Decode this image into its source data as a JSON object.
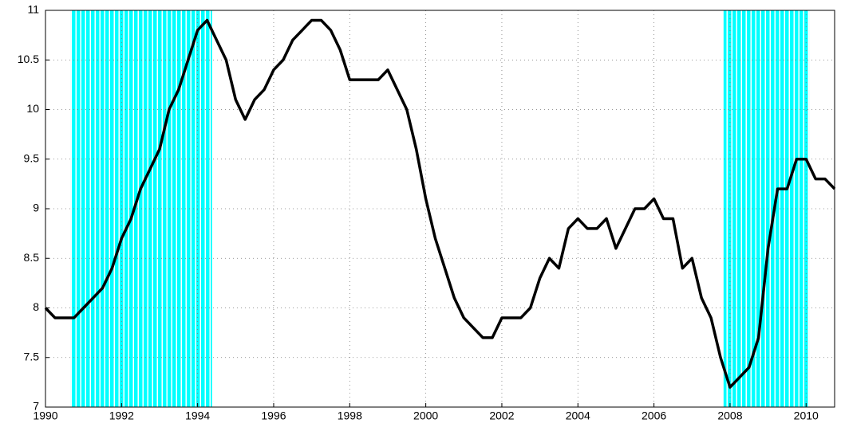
{
  "chart_data": {
    "type": "line",
    "x": [
      1990,
      1990.25,
      1990.5,
      1990.75,
      1991,
      1991.25,
      1991.5,
      1991.75,
      1992,
      1992.25,
      1992.5,
      1992.75,
      1993,
      1993.25,
      1993.5,
      1993.75,
      1994,
      1994.25,
      1994.5,
      1994.75,
      1995,
      1995.25,
      1995.5,
      1995.75,
      1996,
      1996.25,
      1996.5,
      1996.75,
      1997,
      1997.25,
      1997.5,
      1997.75,
      1998,
      1998.25,
      1998.5,
      1998.75,
      1999,
      1999.25,
      1999.5,
      1999.75,
      2000,
      2000.25,
      2000.5,
      2000.75,
      2001,
      2001.25,
      2001.5,
      2001.75,
      2002,
      2002.25,
      2002.5,
      2002.75,
      2003,
      2003.25,
      2003.5,
      2003.75,
      2004,
      2004.25,
      2004.5,
      2004.75,
      2005,
      2005.25,
      2005.5,
      2005.75,
      2006,
      2006.25,
      2006.5,
      2006.75,
      2007,
      2007.25,
      2007.5,
      2007.75,
      2008,
      2008.25,
      2008.5,
      2008.75,
      2009,
      2009.25,
      2009.5,
      2009.75,
      2010,
      2010.25,
      2010.5,
      2010.75
    ],
    "values": [
      8.0,
      7.9,
      7.9,
      7.9,
      8.0,
      8.1,
      8.2,
      8.4,
      8.7,
      8.9,
      9.2,
      9.4,
      9.6,
      10.0,
      10.2,
      10.5,
      10.8,
      10.9,
      10.7,
      10.5,
      10.1,
      9.9,
      10.1,
      10.2,
      10.4,
      10.5,
      10.7,
      10.8,
      10.9,
      10.9,
      10.8,
      10.6,
      10.3,
      10.3,
      10.3,
      10.3,
      10.4,
      10.2,
      10.0,
      9.6,
      9.1,
      8.7,
      8.4,
      8.1,
      7.9,
      7.8,
      7.7,
      7.7,
      7.9,
      7.9,
      7.9,
      8.0,
      8.3,
      8.5,
      8.4,
      8.8,
      8.9,
      8.8,
      8.8,
      8.9,
      8.6,
      8.8,
      9.0,
      9.0,
      9.1,
      8.9,
      8.9,
      8.4,
      8.5,
      8.1,
      7.9,
      7.5,
      7.2,
      7.3,
      7.4,
      7.7,
      8.6,
      9.2,
      9.2,
      9.5,
      9.5,
      9.3,
      9.3,
      9.2
    ],
    "color": "#000000",
    "shaded_regions": [
      [
        1990.67,
        1994.38
      ],
      [
        2007.83,
        2010.08
      ]
    ],
    "shade_color": "#00ffff",
    "xlim": [
      1990,
      2010.75
    ],
    "ylim": [
      7,
      11
    ],
    "xticks": [
      1990,
      1992,
      1994,
      1996,
      1998,
      2000,
      2002,
      2004,
      2006,
      2008,
      2010
    ],
    "yticks": [
      7,
      7.5,
      8,
      8.5,
      9,
      9.5,
      10,
      10.5,
      11
    ],
    "grid": true
  }
}
